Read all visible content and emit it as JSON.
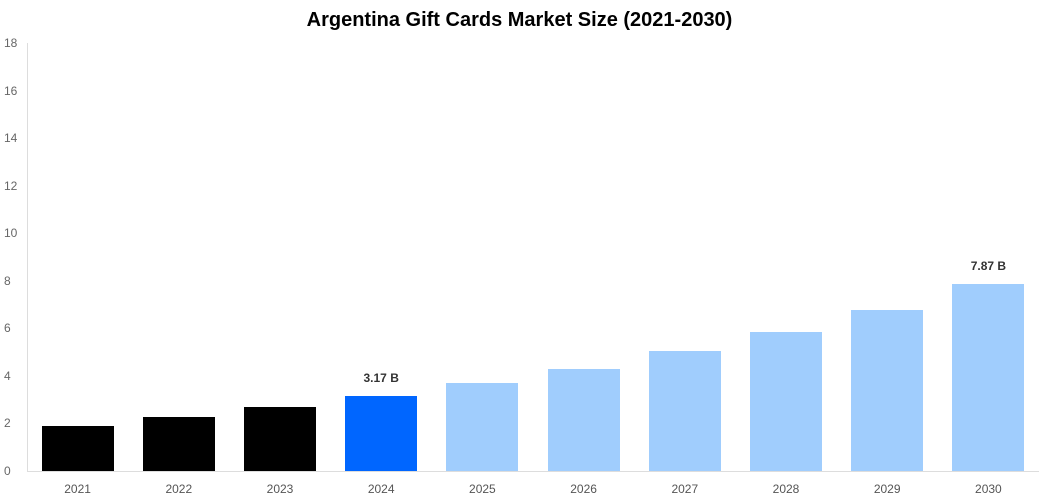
{
  "chart_data": {
    "type": "bar",
    "title": "Argentina Gift Cards Market Size (2021-2030)",
    "xlabel": "",
    "ylabel": "",
    "ylim": [
      0,
      18
    ],
    "yticks": [
      0,
      2,
      4,
      6,
      8,
      10,
      12,
      14,
      16,
      18
    ],
    "grid": false,
    "legend": null,
    "categories": [
      "2021",
      "2022",
      "2023",
      "2024",
      "2025",
      "2026",
      "2027",
      "2028",
      "2029",
      "2030"
    ],
    "values": [
      1.89,
      2.27,
      2.69,
      3.17,
      3.7,
      4.29,
      5.04,
      5.84,
      6.76,
      7.87
    ],
    "bar_colors": [
      "#000000",
      "#000000",
      "#000000",
      "#0066ff",
      "#a0cdfd",
      "#a0cdfd",
      "#a0cdfd",
      "#a0cdfd",
      "#a0cdfd",
      "#a0cdfd"
    ],
    "annotations": [
      {
        "category": "2024",
        "text": "3.17 B"
      },
      {
        "category": "2030",
        "text": "7.87 B"
      }
    ]
  }
}
